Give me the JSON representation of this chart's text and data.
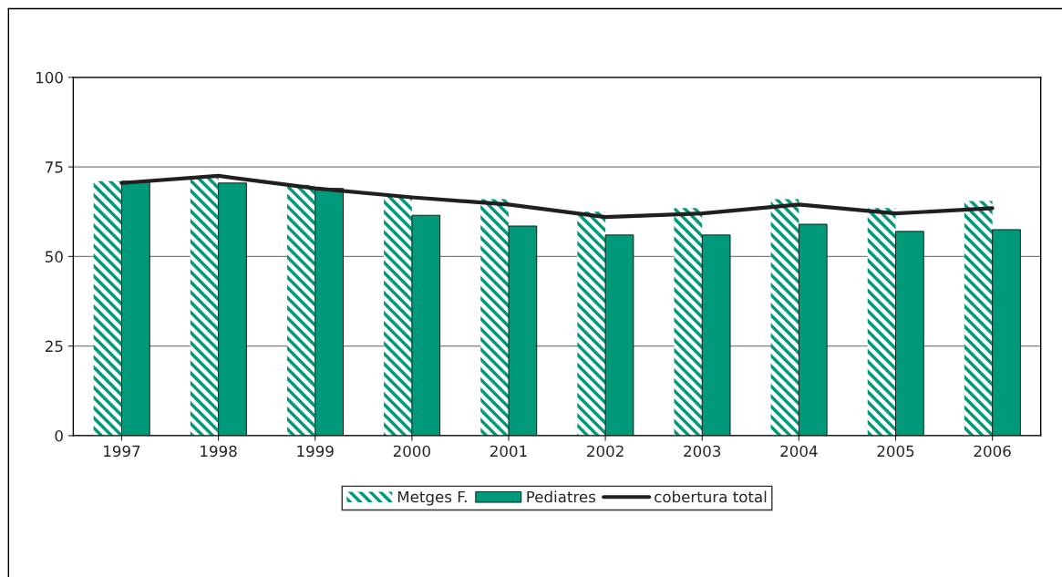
{
  "chart_data": {
    "type": "bar",
    "categories": [
      "1997",
      "1998",
      "1999",
      "2000",
      "2001",
      "2002",
      "2003",
      "2004",
      "2005",
      "2006"
    ],
    "series": [
      {
        "name": "Metges F.",
        "color": "#009a7a",
        "values": [
          71,
          72,
          70,
          67,
          66,
          62.5,
          63.5,
          66,
          63.5,
          65.5
        ]
      },
      {
        "name": "Pediatres",
        "color": "#009a7a",
        "values": [
          71,
          70.5,
          69,
          61.5,
          58.5,
          56,
          56,
          59,
          57,
          57.5
        ]
      },
      {
        "name": "cobertura total",
        "type": "line",
        "color": "#231f20",
        "values": [
          70.5,
          72.5,
          69,
          66.5,
          64.5,
          61,
          62,
          64.5,
          62,
          63.5
        ]
      }
    ],
    "ylim": [
      0,
      100
    ],
    "yticks": [
      0,
      25,
      50,
      75,
      100
    ],
    "grid": "y",
    "legend": "bottom"
  }
}
